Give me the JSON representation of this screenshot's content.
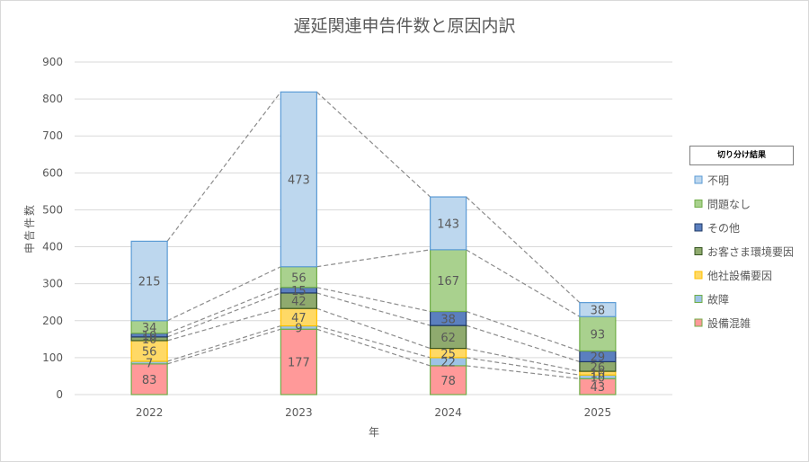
{
  "chart_data": {
    "type": "bar",
    "stacked": true,
    "title": "遅延関連申告件数と原因内訳",
    "xlabel": "年",
    "ylabel": "申告件数",
    "ylim": [
      0,
      900
    ],
    "yticks": [
      0,
      100,
      200,
      300,
      400,
      500,
      600,
      700,
      800,
      900
    ],
    "grid": true,
    "legend_placement": "right",
    "legend_title": "切り分け結果",
    "categories": [
      "2022",
      "2023",
      "2024",
      "2025"
    ],
    "series": [
      {
        "name": "設備混雑",
        "color": "#ff9999",
        "border": "#70ad47",
        "values": [
          83,
          177,
          78,
          43
        ]
      },
      {
        "name": "故障",
        "color": "#9dc3e6",
        "border": "#70ad47",
        "values": [
          7,
          9,
          22,
          10
        ]
      },
      {
        "name": "他社設備要因",
        "color": "#ffd966",
        "border": "#ffc000",
        "values": [
          56,
          47,
          25,
          10
        ]
      },
      {
        "name": "お客さま環境要因",
        "color": "#8faa6e",
        "border": "#375623",
        "values": [
          10,
          42,
          62,
          26
        ]
      },
      {
        "name": "その他",
        "color": "#5b7fbf",
        "border": "#1f3864",
        "values": [
          10,
          15,
          38,
          29
        ]
      },
      {
        "name": "問題なし",
        "color": "#a9d18e",
        "border": "#70ad47",
        "values": [
          34,
          56,
          167,
          93
        ]
      },
      {
        "name": "不明",
        "color": "#bdd7ee",
        "border": "#5b9bd5",
        "values": [
          215,
          473,
          143,
          38
        ]
      }
    ]
  }
}
